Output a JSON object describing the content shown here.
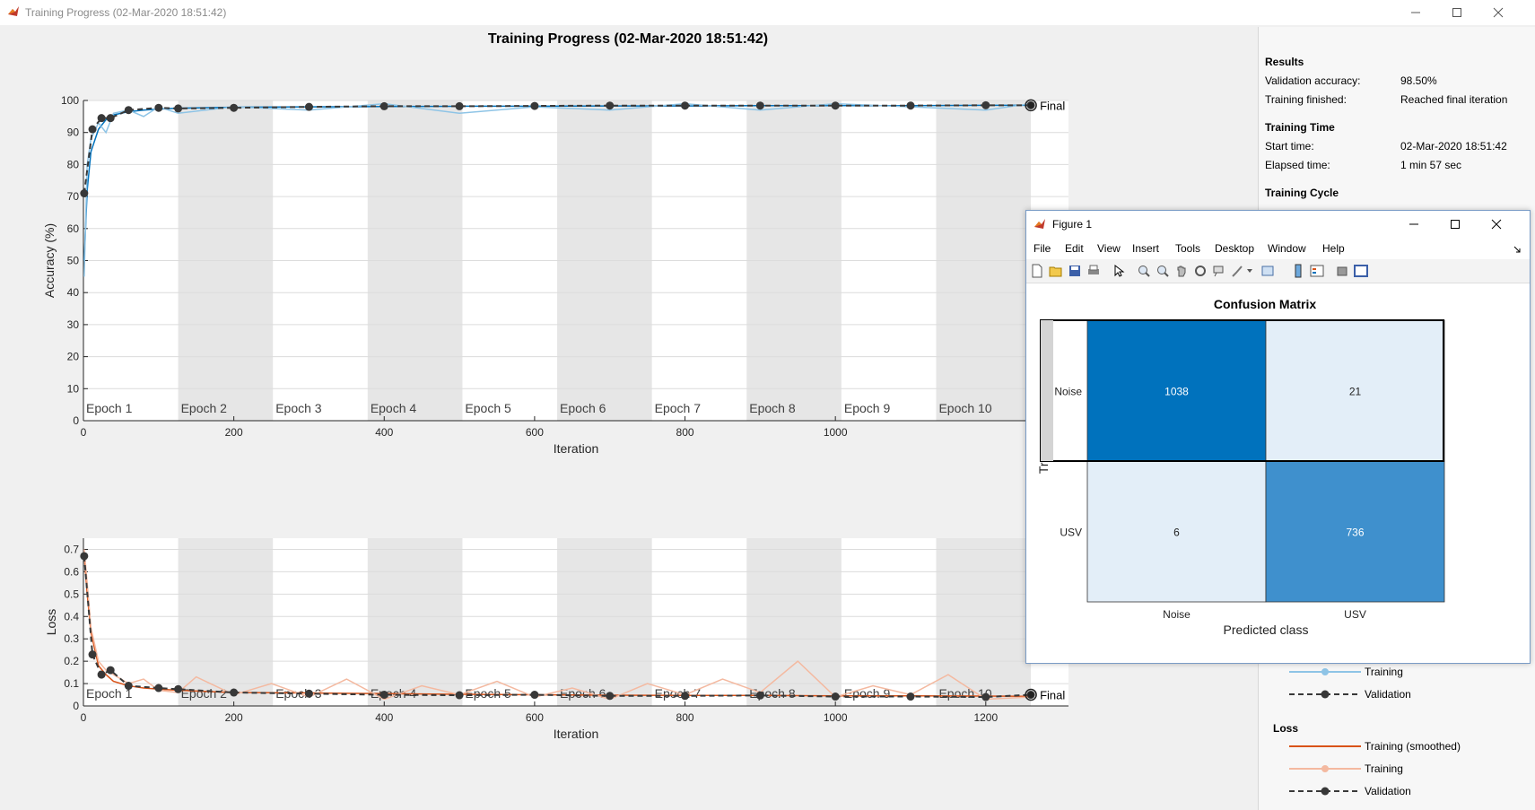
{
  "window": {
    "title": "Training Progress (02-Mar-2020 18:51:42)",
    "controls": [
      "minimize-icon",
      "maximize-icon",
      "close-icon"
    ]
  },
  "main": {
    "plot_title": "Training Progress (02-Mar-2020 18:51:42)",
    "final_label": "Final"
  },
  "chart_data": [
    {
      "type": "line",
      "name": "accuracy-plot",
      "xlabel": "Iteration",
      "ylabel": "Accuracy (%)",
      "xlim": [
        0,
        1310
      ],
      "ylim": [
        0,
        100
      ],
      "xticks": [
        0,
        200,
        400,
        600,
        800,
        1000
      ],
      "yticks": [
        0,
        10,
        20,
        30,
        40,
        50,
        60,
        70,
        80,
        90,
        100
      ],
      "epochs": [
        "Epoch 1",
        "Epoch 2",
        "Epoch 3",
        "Epoch 4",
        "Epoch 5",
        "Epoch 6",
        "Epoch 7",
        "Epoch 8",
        "Epoch 9",
        "Epoch 10"
      ],
      "iterations_per_epoch": 126,
      "total_iterations": 1260,
      "grid": true,
      "series": [
        {
          "name": "Training (smoothed)",
          "color": "#0072bd",
          "x": [
            1,
            5,
            10,
            20,
            30,
            40,
            60,
            80,
            100,
            126,
            200,
            300,
            400,
            500,
            600,
            700,
            800,
            900,
            1000,
            1100,
            1200,
            1260
          ],
          "y": [
            50,
            72,
            84,
            91,
            94,
            95.5,
            96.5,
            97,
            97.3,
            97.6,
            97.9,
            98,
            98.1,
            98.2,
            98.2,
            98.3,
            98.3,
            98.4,
            98.4,
            98.4,
            98.5,
            98.5
          ]
        },
        {
          "name": "Training",
          "color": "#8ec4e6",
          "x": [
            1,
            5,
            10,
            20,
            30,
            40,
            60,
            80,
            100,
            126,
            200,
            300,
            400,
            500,
            600,
            700,
            800,
            900,
            1000,
            1100,
            1200,
            1260
          ],
          "y": [
            45,
            80,
            88,
            93,
            90,
            96,
            97,
            95,
            98,
            96,
            98,
            97,
            99,
            96,
            98,
            97,
            99,
            97,
            99,
            98,
            97,
            99
          ]
        },
        {
          "name": "Validation",
          "color": "#383838",
          "x": [
            1,
            12,
            24,
            36,
            60,
            100,
            126,
            200,
            300,
            400,
            500,
            600,
            700,
            800,
            900,
            1000,
            1100,
            1200,
            1260
          ],
          "y": [
            71,
            91,
            94.5,
            94.5,
            97,
            97.7,
            97.5,
            97.7,
            98,
            98.2,
            98.2,
            98.3,
            98.4,
            98.4,
            98.4,
            98.4,
            98.4,
            98.5,
            98.5
          ]
        }
      ]
    },
    {
      "type": "line",
      "name": "loss-plot",
      "xlabel": "Iteration",
      "ylabel": "Loss",
      "xlim": [
        0,
        1310
      ],
      "ylim": [
        0,
        0.75
      ],
      "xticks": [
        0,
        200,
        400,
        600,
        800,
        1000,
        1200
      ],
      "yticks": [
        0,
        0.1,
        0.2,
        0.3,
        0.4,
        0.5,
        0.6,
        0.7
      ],
      "epochs": [
        "Epoch 1",
        "Epoch 2",
        "Epoch 3",
        "Epoch 4",
        "Epoch 5",
        "Epoch 6",
        "Epoch 7",
        "Epoch 8",
        "Epoch 9",
        "Epoch 10"
      ],
      "iterations_per_epoch": 126,
      "total_iterations": 1260,
      "grid": true,
      "series": [
        {
          "name": "Training (smoothed)",
          "color": "#d95319",
          "x": [
            1,
            5,
            10,
            20,
            30,
            40,
            60,
            80,
            100,
            126,
            200,
            300,
            400,
            500,
            600,
            700,
            800,
            900,
            1000,
            1100,
            1200,
            1260
          ],
          "y": [
            0.68,
            0.5,
            0.33,
            0.18,
            0.14,
            0.11,
            0.09,
            0.08,
            0.075,
            0.07,
            0.06,
            0.058,
            0.055,
            0.052,
            0.05,
            0.048,
            0.047,
            0.047,
            0.045,
            0.045,
            0.044,
            0.043
          ]
        },
        {
          "name": "Training",
          "color": "#f4b9a0",
          "x": [
            1,
            5,
            10,
            20,
            30,
            40,
            60,
            80,
            100,
            126,
            150,
            200,
            250,
            300,
            350,
            400,
            450,
            500,
            550,
            600,
            650,
            700,
            750,
            800,
            850,
            900,
            950,
            1000,
            1050,
            1100,
            1150,
            1200,
            1260
          ],
          "y": [
            0.7,
            0.55,
            0.35,
            0.2,
            0.16,
            0.14,
            0.1,
            0.12,
            0.07,
            0.06,
            0.13,
            0.05,
            0.1,
            0.04,
            0.12,
            0.03,
            0.09,
            0.05,
            0.11,
            0.04,
            0.08,
            0.03,
            0.1,
            0.05,
            0.12,
            0.06,
            0.2,
            0.04,
            0.09,
            0.05,
            0.14,
            0.03,
            0.04
          ]
        },
        {
          "name": "Validation",
          "color": "#383838",
          "x": [
            1,
            12,
            24,
            36,
            60,
            100,
            126,
            200,
            300,
            400,
            500,
            600,
            700,
            800,
            900,
            1000,
            1100,
            1200,
            1260
          ],
          "y": [
            0.67,
            0.23,
            0.14,
            0.16,
            0.09,
            0.08,
            0.075,
            0.06,
            0.055,
            0.05,
            0.048,
            0.05,
            0.045,
            0.045,
            0.047,
            0.042,
            0.042,
            0.04,
            0.05
          ]
        }
      ]
    },
    {
      "type": "heatmap",
      "name": "confusion-matrix",
      "title": "Confusion Matrix",
      "xlabel": "Predicted class",
      "ylabel": "True",
      "row_labels": [
        "Noise",
        "USV"
      ],
      "col_labels": [
        "Noise",
        "USV"
      ],
      "values": [
        [
          1038,
          21
        ],
        [
          6,
          736
        ]
      ]
    }
  ],
  "results_panel": {
    "results_heading": "Results",
    "validation_accuracy_label": "Validation accuracy:",
    "validation_accuracy_value": "98.50%",
    "training_finished_label": "Training finished:",
    "training_finished_value": "Reached final iteration",
    "training_time_heading": "Training Time",
    "start_time_label": "Start time:",
    "start_time_value": "02-Mar-2020 18:51:42",
    "elapsed_time_label": "Elapsed time:",
    "elapsed_time_value": "1 min 57 sec",
    "training_cycle_heading": "Training Cycle",
    "legend_accuracy": {
      "training": "Training",
      "validation": "Validation"
    },
    "loss_heading": "Loss",
    "legend_loss": {
      "training_smoothed": "Training (smoothed)",
      "training": "Training",
      "validation": "Validation"
    }
  },
  "figure_window": {
    "title": "Figure 1",
    "menu": [
      "File",
      "Edit",
      "View",
      "Insert",
      "Tools",
      "Desktop",
      "Window",
      "Help"
    ],
    "toolbar_icons": [
      "new-figure-icon",
      "open-icon",
      "save-icon",
      "print-icon",
      "pointer-icon",
      "zoom-in-icon",
      "zoom-out-icon",
      "pan-icon",
      "rotate-icon",
      "data-cursor-icon",
      "brush-icon",
      "link-plot-icon",
      "colorbar-icon",
      "legend-icon",
      "hide-plot-tools-icon",
      "show-plot-tools-icon"
    ],
    "colors": {
      "high": "#0072bd",
      "mid": "#3f90cd",
      "low": "#e3eef8"
    }
  }
}
